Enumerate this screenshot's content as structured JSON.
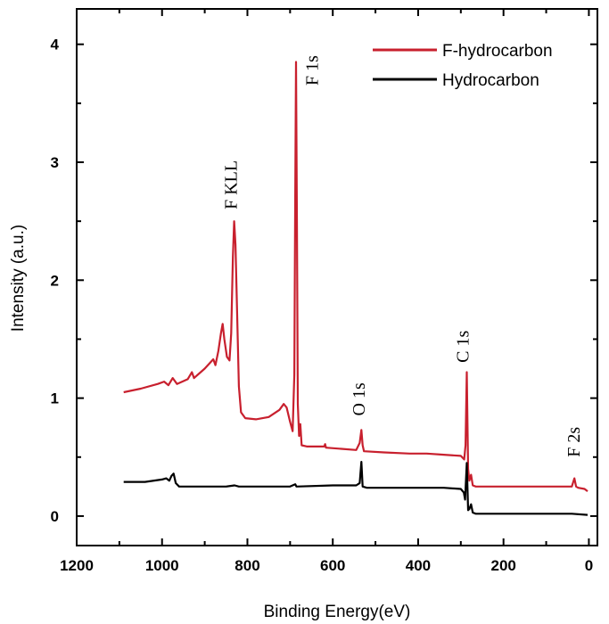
{
  "chart_data": {
    "type": "line",
    "xlabel": "Binding Energy(eV)",
    "ylabel": "Intensity (a.u.)",
    "xlim": [
      1200,
      -20
    ],
    "ylim": [
      -0.25,
      4.3
    ],
    "x_ticks": [
      1200,
      1000,
      800,
      600,
      400,
      200,
      0
    ],
    "y_ticks": [
      0,
      1,
      2,
      3,
      4
    ],
    "legend_position": "top-right",
    "grid": false,
    "series": [
      {
        "name": "F-hydrocarbon",
        "color": "#c8202e",
        "points": [
          [
            1090,
            1.05
          ],
          [
            1050,
            1.08
          ],
          [
            1010,
            1.12
          ],
          [
            995,
            1.14
          ],
          [
            985,
            1.11
          ],
          [
            975,
            1.17
          ],
          [
            965,
            1.12
          ],
          [
            940,
            1.16
          ],
          [
            930,
            1.22
          ],
          [
            925,
            1.17
          ],
          [
            900,
            1.25
          ],
          [
            880,
            1.33
          ],
          [
            875,
            1.28
          ],
          [
            868,
            1.4
          ],
          [
            862,
            1.55
          ],
          [
            858,
            1.63
          ],
          [
            854,
            1.5
          ],
          [
            848,
            1.35
          ],
          [
            842,
            1.32
          ],
          [
            838,
            1.55
          ],
          [
            834,
            2.2
          ],
          [
            831,
            2.5
          ],
          [
            828,
            2.3
          ],
          [
            824,
            1.7
          ],
          [
            820,
            1.1
          ],
          [
            815,
            0.88
          ],
          [
            805,
            0.83
          ],
          [
            780,
            0.82
          ],
          [
            750,
            0.84
          ],
          [
            725,
            0.9
          ],
          [
            715,
            0.95
          ],
          [
            708,
            0.92
          ],
          [
            700,
            0.8
          ],
          [
            694,
            0.72
          ],
          [
            690,
            1.2
          ],
          [
            688,
            2.7
          ],
          [
            686,
            3.85
          ],
          [
            684,
            2.5
          ],
          [
            682,
            0.95
          ],
          [
            679,
            0.68
          ],
          [
            676,
            0.78
          ],
          [
            673,
            0.6
          ],
          [
            660,
            0.59
          ],
          [
            620,
            0.59
          ],
          [
            618,
            0.61
          ],
          [
            616,
            0.58
          ],
          [
            580,
            0.57
          ],
          [
            545,
            0.56
          ],
          [
            537,
            0.62
          ],
          [
            533,
            0.73
          ],
          [
            530,
            0.6
          ],
          [
            527,
            0.55
          ],
          [
            480,
            0.54
          ],
          [
            420,
            0.53
          ],
          [
            380,
            0.53
          ],
          [
            340,
            0.52
          ],
          [
            300,
            0.51
          ],
          [
            292,
            0.48
          ],
          [
            289,
            0.6
          ],
          [
            286,
            1.22
          ],
          [
            283,
            0.4
          ],
          [
            280,
            0.3
          ],
          [
            276,
            0.35
          ],
          [
            272,
            0.26
          ],
          [
            265,
            0.25
          ],
          [
            200,
            0.25
          ],
          [
            120,
            0.25
          ],
          [
            40,
            0.25
          ],
          [
            34,
            0.32
          ],
          [
            30,
            0.25
          ],
          [
            25,
            0.24
          ],
          [
            10,
            0.23
          ],
          [
            3,
            0.21
          ]
        ]
      },
      {
        "name": "Hydrocarbon",
        "color": "#000000",
        "points": [
          [
            1090,
            0.29
          ],
          [
            1040,
            0.29
          ],
          [
            1000,
            0.31
          ],
          [
            990,
            0.32
          ],
          [
            983,
            0.3
          ],
          [
            978,
            0.34
          ],
          [
            973,
            0.36
          ],
          [
            968,
            0.28
          ],
          [
            960,
            0.25
          ],
          [
            900,
            0.25
          ],
          [
            850,
            0.25
          ],
          [
            830,
            0.26
          ],
          [
            820,
            0.25
          ],
          [
            700,
            0.25
          ],
          [
            688,
            0.27
          ],
          [
            685,
            0.25
          ],
          [
            600,
            0.26
          ],
          [
            545,
            0.26
          ],
          [
            537,
            0.28
          ],
          [
            533,
            0.46
          ],
          [
            530,
            0.25
          ],
          [
            520,
            0.24
          ],
          [
            450,
            0.24
          ],
          [
            400,
            0.24
          ],
          [
            340,
            0.24
          ],
          [
            300,
            0.23
          ],
          [
            293,
            0.2
          ],
          [
            290,
            0.14
          ],
          [
            286,
            0.45
          ],
          [
            283,
            0.05
          ],
          [
            280,
            0.06
          ],
          [
            276,
            0.1
          ],
          [
            272,
            0.03
          ],
          [
            265,
            0.02
          ],
          [
            200,
            0.02
          ],
          [
            100,
            0.02
          ],
          [
            40,
            0.02
          ],
          [
            3,
            0.01
          ]
        ]
      }
    ],
    "annotations": [
      {
        "text": "F 1s",
        "x": 635,
        "y": 3.65
      },
      {
        "text": "F KLL",
        "x": 825,
        "y": 2.6
      },
      {
        "text": "O 1s",
        "x": 525,
        "y": 0.85
      },
      {
        "text": "C 1s",
        "x": 282,
        "y": 1.3
      },
      {
        "text": "F 2s",
        "x": 22,
        "y": 0.5
      }
    ]
  }
}
